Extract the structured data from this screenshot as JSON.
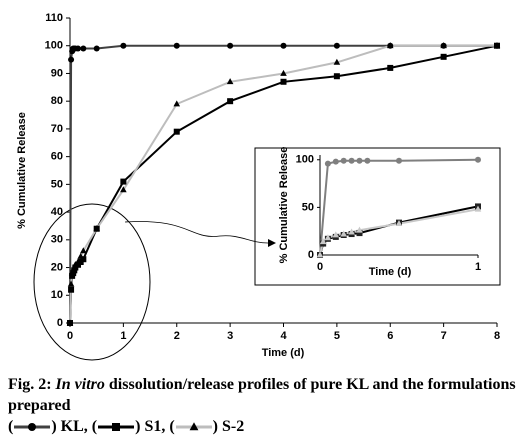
{
  "chart_data": [
    {
      "type": "line",
      "xlabel": "Time (d)",
      "ylabel": "% Cumulative Release",
      "xlim": [
        0,
        8
      ],
      "xticks": [
        0,
        1,
        2,
        3,
        4,
        5,
        6,
        7,
        8
      ],
      "ylim": [
        0,
        110
      ],
      "yticks": [
        0,
        10,
        20,
        30,
        40,
        50,
        60,
        70,
        80,
        90,
        100,
        110
      ],
      "series": [
        {
          "name": "KL",
          "color": "#404040",
          "marker": "circle",
          "marker_color": "#000000",
          "x": [
            0,
            0.02,
            0.04,
            0.06,
            0.08,
            0.1,
            0.15,
            0.25,
            0.5,
            1,
            2,
            3,
            4,
            5,
            6,
            7,
            8
          ],
          "values": [
            0,
            95,
            98,
            99,
            99,
            99,
            99,
            99,
            99,
            100,
            100,
            100,
            100,
            100,
            100,
            100,
            100
          ]
        },
        {
          "name": "S1",
          "color": "#000000",
          "marker": "square",
          "marker_color": "#000000",
          "x": [
            0,
            0.02,
            0.04,
            0.06,
            0.08,
            0.1,
            0.15,
            0.2,
            0.25,
            0.5,
            1,
            2,
            3,
            4,
            5,
            6,
            7,
            8
          ],
          "values": [
            0,
            12,
            17,
            18,
            19,
            20,
            21,
            22,
            23,
            34,
            51,
            69,
            80,
            87,
            89,
            92,
            96,
            100
          ]
        },
        {
          "name": "S-2",
          "color": "#bdbdbd",
          "marker": "triangle",
          "marker_color": "#000000",
          "x": [
            0,
            0.02,
            0.04,
            0.06,
            0.08,
            0.1,
            0.15,
            0.2,
            0.25,
            0.5,
            1,
            2,
            3,
            4,
            5,
            6,
            7,
            8
          ],
          "values": [
            0,
            14,
            18,
            19,
            20,
            21,
            22,
            24,
            26,
            34,
            48,
            79,
            87,
            90,
            94,
            100,
            100,
            100
          ]
        }
      ]
    },
    {
      "type": "line",
      "xlabel": "Time (d)",
      "ylabel": "% Cumulative Release",
      "xlim": [
        0,
        1
      ],
      "xticks": [
        0,
        1
      ],
      "ylim": [
        0,
        105
      ],
      "yticks": [
        0,
        50,
        100
      ],
      "series": [
        {
          "color": "#7f7f7f",
          "marker": "circle",
          "marker_color": "#7f7f7f",
          "x": [
            0,
            0.05,
            0.1,
            0.15,
            0.2,
            0.25,
            0.3,
            0.5,
            1
          ],
          "values": [
            0,
            96,
            98,
            99,
            99,
            99,
            99,
            99,
            100
          ]
        },
        {
          "color": "#000000",
          "marker": "square",
          "marker_color": "#222222",
          "x": [
            0,
            0.02,
            0.05,
            0.1,
            0.15,
            0.2,
            0.25,
            0.5,
            1
          ],
          "values": [
            0,
            12,
            17,
            19,
            21,
            22,
            23,
            34,
            51
          ]
        },
        {
          "color": "#c8c8c8",
          "marker": "triangle",
          "marker_color": "#c8c8c8",
          "x": [
            0,
            0.02,
            0.05,
            0.1,
            0.15,
            0.2,
            0.25,
            0.5,
            1
          ],
          "values": [
            0,
            14,
            18,
            21,
            22,
            24,
            26,
            33,
            48
          ]
        }
      ]
    }
  ],
  "caption": {
    "label": "Fig. 2:",
    "italic": "In vitro",
    "text": "dissolution/release profiles of pure KL and the formulations prepared",
    "legend_open": "(",
    "legend_close": ")",
    "legend_sep": ","
  }
}
